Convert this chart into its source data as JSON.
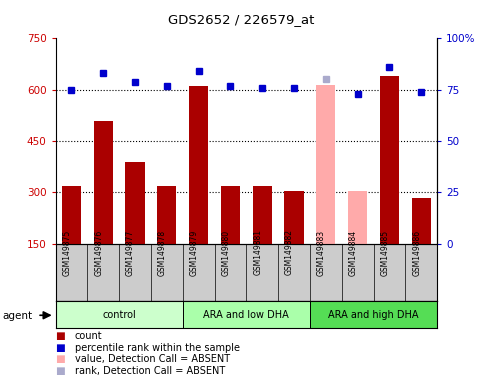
{
  "title": "GDS2652 / 226579_at",
  "samples": [
    "GSM149875",
    "GSM149876",
    "GSM149877",
    "GSM149878",
    "GSM149879",
    "GSM149880",
    "GSM149881",
    "GSM149882",
    "GSM149883",
    "GSM149884",
    "GSM149885",
    "GSM149886"
  ],
  "bar_values": [
    320,
    510,
    390,
    320,
    610,
    320,
    320,
    305,
    null,
    null,
    640,
    285
  ],
  "bar_absent_values": [
    null,
    null,
    null,
    null,
    null,
    null,
    null,
    null,
    615,
    305,
    null,
    null
  ],
  "rank_values": [
    75,
    83,
    79,
    77,
    84,
    77,
    76,
    76,
    null,
    73,
    86,
    74
  ],
  "rank_absent_values": [
    null,
    null,
    null,
    null,
    null,
    null,
    null,
    null,
    80,
    null,
    null,
    null
  ],
  "bar_color": "#aa0000",
  "bar_absent_color": "#ffaaaa",
  "rank_color": "#0000cc",
  "rank_absent_color": "#aaaacc",
  "ylim_left": [
    150,
    750
  ],
  "ylim_right": [
    0,
    100
  ],
  "yticks_left": [
    150,
    300,
    450,
    600,
    750
  ],
  "yticks_right": [
    0,
    25,
    50,
    75,
    100
  ],
  "ytick_labels_right": [
    "0",
    "25",
    "50",
    "75",
    "100%"
  ],
  "hlines": [
    300,
    450,
    600
  ],
  "group_labels": [
    "control",
    "ARA and low DHA",
    "ARA and high DHA"
  ],
  "group_ranges": [
    [
      0,
      3
    ],
    [
      4,
      7
    ],
    [
      8,
      11
    ]
  ],
  "group_colors": [
    "#ccffcc",
    "#aaffaa",
    "#55dd55"
  ],
  "agent_label": "agent",
  "legend_items": [
    {
      "label": "count",
      "color": "#aa0000"
    },
    {
      "label": "percentile rank within the sample",
      "color": "#0000cc"
    },
    {
      "label": "value, Detection Call = ABSENT",
      "color": "#ffaaaa"
    },
    {
      "label": "rank, Detection Call = ABSENT",
      "color": "#aaaacc"
    }
  ],
  "background_color": "#ffffff",
  "tick_label_color_left": "#cc0000",
  "tick_label_color_right": "#0000cc",
  "sample_box_color": "#cccccc",
  "bar_width": 0.6
}
